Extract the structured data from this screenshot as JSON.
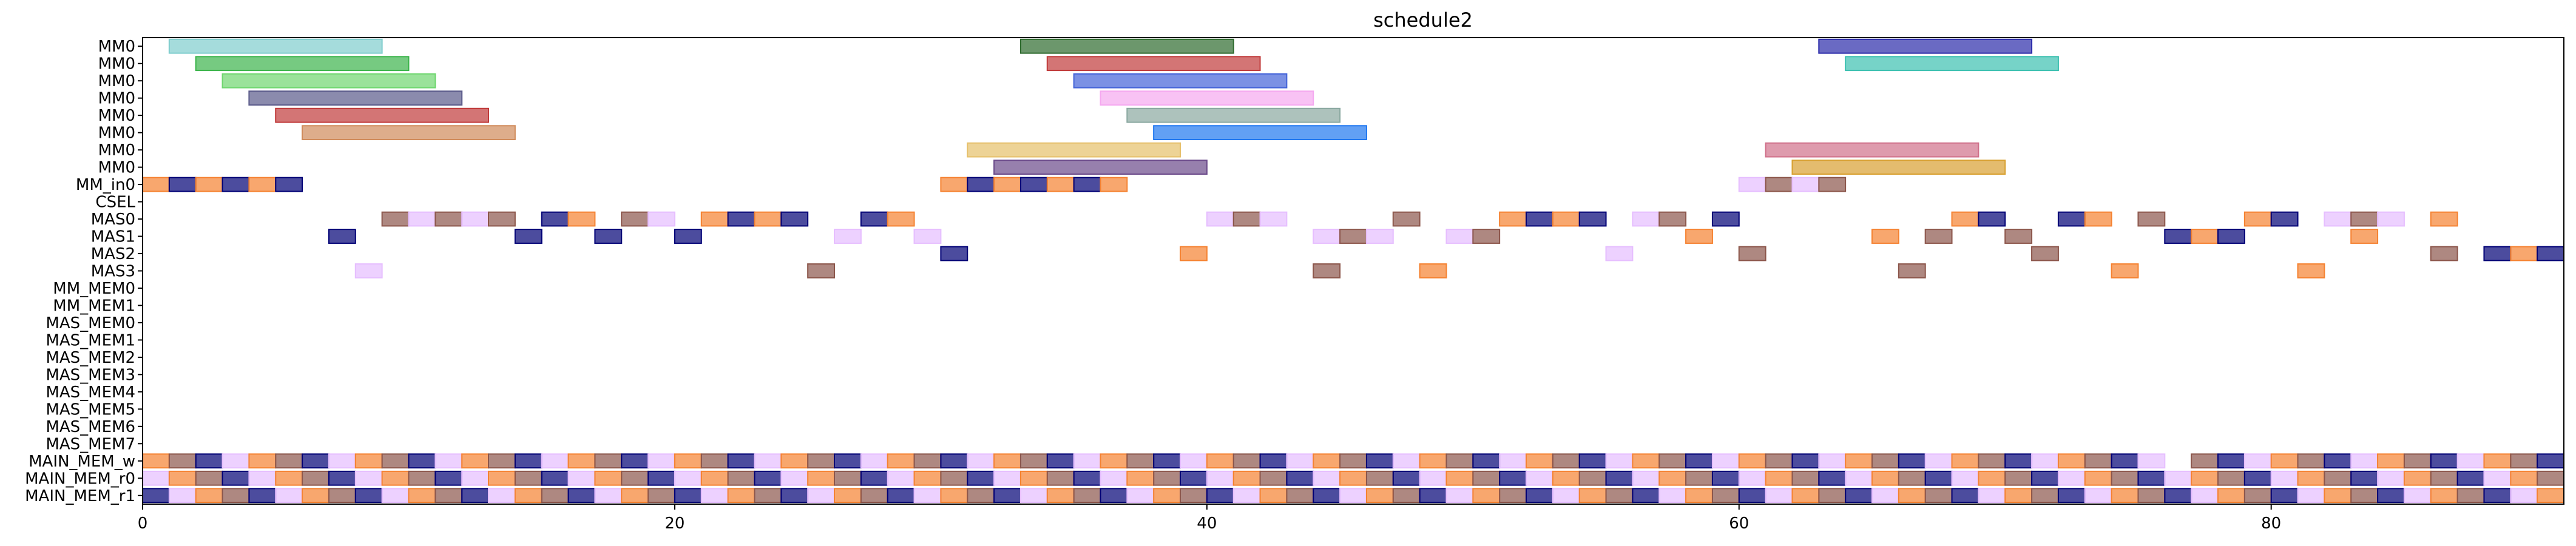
{
  "chart_data": {
    "type": "gantt",
    "title": "schedule2",
    "xlabel": "",
    "ylabel": "",
    "xlim": [
      0,
      91
    ],
    "xticks": [
      0,
      20,
      40,
      60,
      80
    ],
    "grid": false,
    "rows": [
      "MM0",
      "MM0",
      "MM0",
      "MM0",
      "MM0",
      "MM0",
      "MM0",
      "MM0",
      "MM_in0",
      "CSEL",
      "MAS0",
      "MAS1",
      "MAS2",
      "MAS3",
      "MM_MEM0",
      "MM_MEM1",
      "MAS_MEM0",
      "MAS_MEM1",
      "MAS_MEM2",
      "MAS_MEM3",
      "MAS_MEM4",
      "MAS_MEM5",
      "MAS_MEM6",
      "MAS_MEM7",
      "MAIN_MEM_w",
      "MAIN_MEM_r0",
      "MAIN_MEM_r1"
    ],
    "palette": [
      "#e6194b",
      "#3cb44b",
      "#4363d8",
      "#f58231",
      "#911eb4",
      "#46f0f0",
      "#f032e6",
      "#bcf60c",
      "#fabebe",
      "#008080",
      "#e6beff",
      "#9a6324",
      "#fffac8",
      "#800000",
      "#aaffc3",
      "#808000",
      "#ffd8b1",
      "#000075",
      "#808080",
      "#ffe119",
      "#1f77b4",
      "#2ca02c",
      "#d62728",
      "#9467bd",
      "#8c564b",
      "#e377c2",
      "#17becf",
      "#bcbd22"
    ],
    "mm0_bars": [
      {
        "row": 0,
        "start": 1,
        "end": 9,
        "color": "#7fcdcd"
      },
      {
        "row": 1,
        "start": 2,
        "end": 10,
        "color": "#3cb44b"
      },
      {
        "row": 2,
        "start": 3,
        "end": 11,
        "color": "#6fd66f"
      },
      {
        "row": 3,
        "start": 4,
        "end": 12,
        "color": "#5a5a8a"
      },
      {
        "row": 4,
        "start": 5,
        "end": 13,
        "color": "#c03a3a"
      },
      {
        "row": 5,
        "start": 6,
        "end": 14,
        "color": "#d08a5a"
      },
      {
        "row": 0,
        "start": 33,
        "end": 41,
        "color": "#2e6b2e"
      },
      {
        "row": 1,
        "start": 34,
        "end": 42,
        "color": "#c03a3a"
      },
      {
        "row": 2,
        "start": 35,
        "end": 43,
        "color": "#4363d8"
      },
      {
        "row": 3,
        "start": 36,
        "end": 44,
        "color": "#f5a8f0"
      },
      {
        "row": 4,
        "start": 37,
        "end": 45,
        "color": "#8aa8a0"
      },
      {
        "row": 5,
        "start": 38,
        "end": 46,
        "color": "#1f77f0"
      },
      {
        "row": 6,
        "start": 31,
        "end": 39,
        "color": "#e6c06a"
      },
      {
        "row": 7,
        "start": 32,
        "end": 40,
        "color": "#6b4a8a"
      },
      {
        "row": 0,
        "start": 63,
        "end": 71,
        "color": "#2b2baa"
      },
      {
        "row": 1,
        "start": 64,
        "end": 72,
        "color": "#3cc0b0"
      },
      {
        "row": 6,
        "start": 61,
        "end": 69,
        "color": "#d0708a"
      },
      {
        "row": 7,
        "start": 62,
        "end": 70,
        "color": "#d8a030"
      }
    ],
    "sparse_rows": {
      "MM_in0": [
        0,
        1,
        2,
        3,
        4,
        5,
        30,
        31,
        32,
        33,
        34,
        35,
        36,
        60,
        61,
        62,
        63
      ],
      "MAS0": [
        9,
        10,
        11,
        12,
        13,
        15,
        16,
        18,
        19,
        21,
        22,
        23,
        24,
        27,
        28,
        40,
        41,
        42,
        47,
        51,
        52,
        53,
        54,
        56,
        57,
        59,
        68,
        69,
        72,
        73,
        75,
        79,
        80,
        82,
        83,
        84,
        86
      ],
      "MAS1": [
        7,
        14,
        17,
        20,
        26,
        29,
        44,
        45,
        46,
        49,
        50,
        58,
        65,
        67,
        70,
        76,
        77,
        78,
        83
      ],
      "MAS2": [
        30,
        39,
        55,
        60,
        71,
        86,
        88,
        89,
        90
      ],
      "MAS3": [
        8,
        25,
        44,
        48,
        66,
        74,
        81
      ]
    },
    "dense_rows": {
      "MAIN_MEM_w": [
        0,
        91
      ],
      "MAIN_MEM_r0": [
        0,
        91
      ],
      "MAIN_MEM_r1": [
        0,
        91
      ]
    },
    "main_mem_w_gap": 76
  }
}
